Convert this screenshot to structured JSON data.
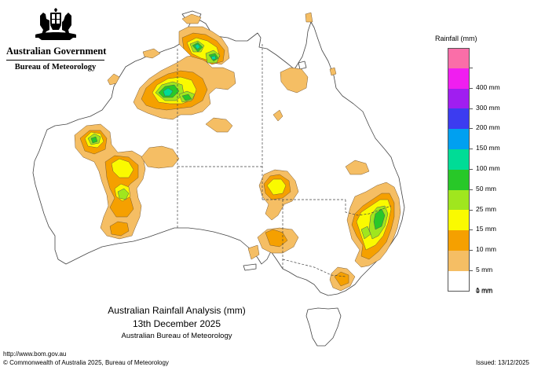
{
  "header": {
    "org_title": "Australian Government",
    "bureau": "Bureau of Meteorology"
  },
  "map_title": {
    "line1": "Australian Rainfall Analysis (mm)",
    "line2": "13th December 2025",
    "line3": "Australian Bureau of Meteorology"
  },
  "footer": {
    "url": "http://www.bom.gov.au",
    "copyright": "© Commonwealth of Australia 2025, Bureau of Meteorology",
    "issued": "Issued: 13/12/2025"
  },
  "legend": {
    "title": "Rainfall (mm)",
    "items": [
      {
        "color": "#fa6ea8",
        "label": ""
      },
      {
        "color": "#f01ef0",
        "label": "400 mm"
      },
      {
        "color": "#a01ef0",
        "label": "300 mm"
      },
      {
        "color": "#3c3cf0",
        "label": "200 mm"
      },
      {
        "color": "#00a0f0",
        "label": "150 mm"
      },
      {
        "color": "#00dc96",
        "label": "100 mm"
      },
      {
        "color": "#28c828",
        "label": "50 mm"
      },
      {
        "color": "#a0e61e",
        "label": "25 mm"
      },
      {
        "color": "#fafa00",
        "label": "15 mm"
      },
      {
        "color": "#f5a000",
        "label": "10 mm"
      },
      {
        "color": "#f5be64",
        "label": "5 mm"
      },
      {
        "color": "#ffffff",
        "label": "1 mm"
      },
      {
        "color": "#ffffff",
        "label": "0 mm"
      }
    ]
  }
}
